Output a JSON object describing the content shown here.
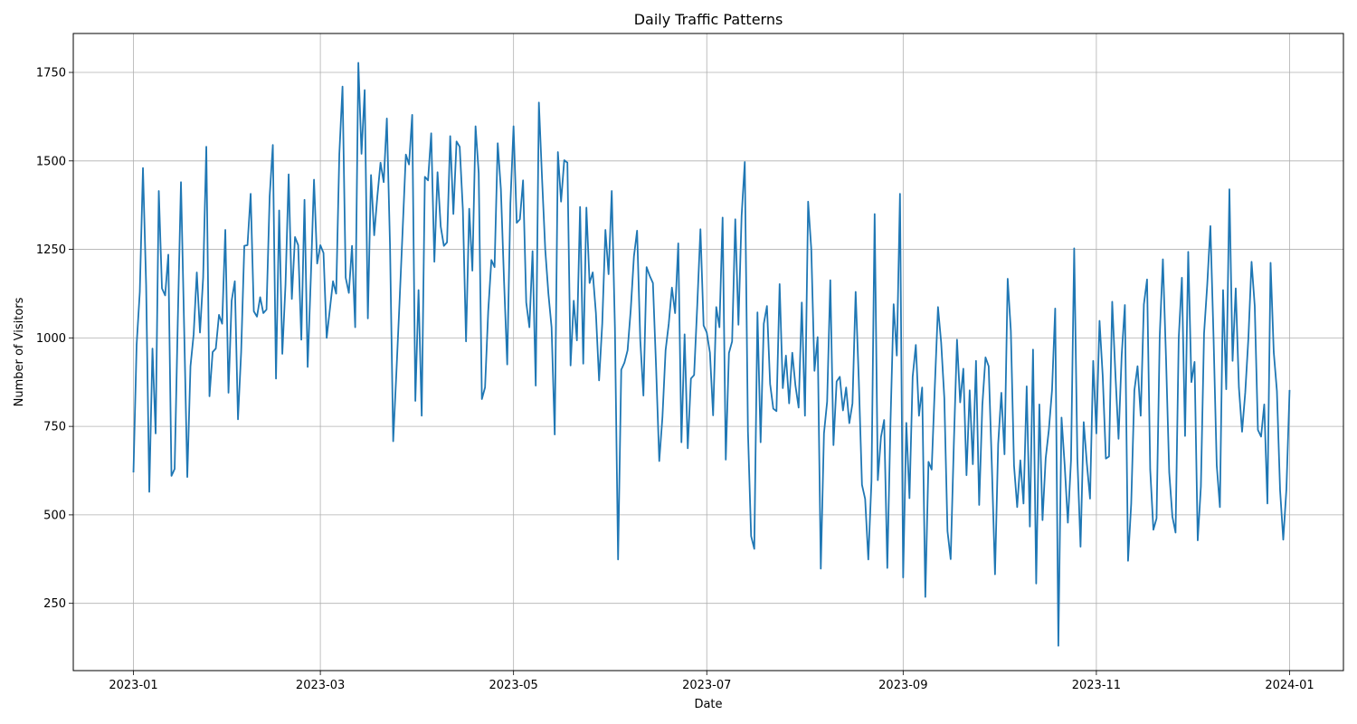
{
  "chart_data": {
    "type": "line",
    "title": "Daily Traffic Patterns",
    "xlabel": "Date",
    "ylabel": "Number of Visitors",
    "x_start": "2023-01-01",
    "x_end": "2023-12-31",
    "xlim": [
      "2022-12-13",
      "2024-01-18"
    ],
    "ylim": [
      60,
      1860
    ],
    "x_ticks": [
      {
        "date": "2023-01-01",
        "label": "2023-01"
      },
      {
        "date": "2023-03-01",
        "label": "2023-03"
      },
      {
        "date": "2023-05-01",
        "label": "2023-05"
      },
      {
        "date": "2023-07-01",
        "label": "2023-07"
      },
      {
        "date": "2023-09-01",
        "label": "2023-09"
      },
      {
        "date": "2023-11-01",
        "label": "2023-11"
      },
      {
        "date": "2024-01-01",
        "label": "2024-01"
      }
    ],
    "y_ticks": [
      250,
      500,
      750,
      1000,
      1250,
      1500,
      1750
    ],
    "grid": true,
    "line_color": "#1f77b4",
    "series": [
      {
        "name": "",
        "values": [
          620,
          980,
          1130,
          1480,
          1150,
          565,
          970,
          730,
          1415,
          1140,
          1120,
          1235,
          610,
          630,
          1050,
          1440,
          1030,
          607,
          920,
          1010,
          1185,
          1015,
          1170,
          1540,
          835,
          960,
          970,
          1065,
          1040,
          1305,
          845,
          1105,
          1160,
          770,
          960,
          1260,
          1262,
          1407,
          1075,
          1060,
          1115,
          1070,
          1080,
          1400,
          1545,
          885,
          1360,
          955,
          1150,
          1462,
          1110,
          1285,
          1262,
          995,
          1390,
          918,
          1170,
          1447,
          1210,
          1262,
          1240,
          1000,
          1080,
          1160,
          1125,
          1520,
          1710,
          1170,
          1127,
          1260,
          1030,
          1777,
          1520,
          1700,
          1055,
          1460,
          1290,
          1400,
          1495,
          1440,
          1620,
          1260,
          708,
          900,
          1100,
          1308,
          1518,
          1490,
          1630,
          822,
          1135,
          780,
          1455,
          1445,
          1578,
          1215,
          1468,
          1315,
          1260,
          1270,
          1570,
          1350,
          1555,
          1540,
          1362,
          990,
          1365,
          1190,
          1598,
          1465,
          827,
          860,
          1075,
          1220,
          1200,
          1550,
          1420,
          1160,
          925,
          1380,
          1598,
          1325,
          1335,
          1445,
          1100,
          1030,
          1245,
          865,
          1665,
          1450,
          1250,
          1125,
          1030,
          727,
          1525,
          1385,
          1502,
          1495,
          922,
          1105,
          993,
          1370,
          927,
          1368,
          1155,
          1185,
          1070,
          880,
          1040,
          1305,
          1180,
          1415,
          1030,
          374,
          910,
          930,
          965,
          1080,
          1230,
          1303,
          995,
          837,
          1200,
          1175,
          1155,
          917,
          652,
          775,
          965,
          1040,
          1142,
          1070,
          1267,
          705,
          1010,
          688,
          885,
          895,
          1093,
          1307,
          1035,
          1015,
          958,
          781,
          1087,
          1030,
          1340,
          656,
          957,
          990,
          1335,
          1037,
          1345,
          1497,
          735,
          440,
          404,
          1072,
          705,
          1040,
          1090,
          870,
          800,
          793,
          1152,
          858,
          950,
          815,
          958,
          865,
          803,
          1100,
          780,
          1385,
          1250,
          907,
          1002,
          348,
          730,
          820,
          1163,
          697,
          877,
          890,
          795,
          860,
          759,
          815,
          1130,
          880,
          585,
          545,
          374,
          595,
          1350,
          598,
          720,
          768,
          350,
          760,
          1095,
          950,
          1407,
          323,
          760,
          547,
          890,
          980,
          780,
          860,
          268,
          650,
          628,
          863,
          1087,
          987,
          830,
          454,
          375,
          700,
          995,
          818,
          913,
          612,
          852,
          643,
          935,
          528,
          810,
          945,
          920,
          640,
          332,
          700,
          845,
          671,
          1167,
          1020,
          640,
          522,
          654,
          532,
          863,
          467,
          967,
          306,
          812,
          485,
          660,
          740,
          852,
          1083,
          130,
          775,
          640,
          478,
          655,
          1253,
          660,
          410,
          762,
          645,
          546,
          935,
          730,
          1048,
          893,
          659,
          665,
          1102,
          900,
          715,
          952,
          1093,
          370,
          532,
          852,
          920,
          780,
          1095,
          1165,
          628,
          458,
          490,
          1005,
          1222,
          940,
          620,
          495,
          450,
          1000,
          1170,
          723,
          1243,
          875,
          932,
          428,
          580,
          1013,
          1150,
          1316,
          1000,
          640,
          522,
          1135,
          855,
          1420,
          935,
          1140,
          860,
          735,
          845,
          1000,
          1215,
          1090,
          740,
          721,
          812,
          532,
          1212,
          960,
          850,
          570,
          430,
          573,
          853
        ]
      }
    ]
  }
}
